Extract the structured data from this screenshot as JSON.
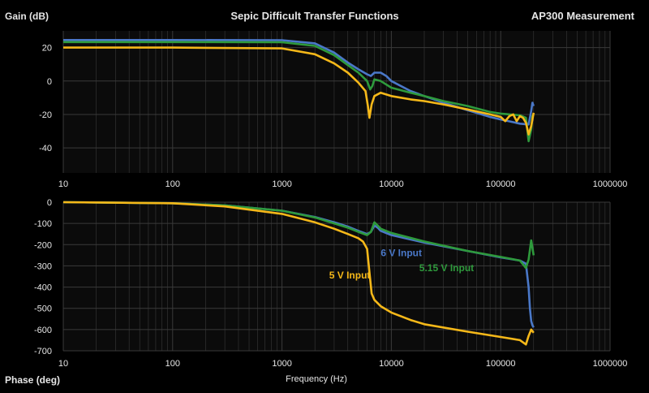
{
  "header": {
    "left_label": "Gain (dB)",
    "title": "Sepic Difficult Transfer Functions",
    "right_label": "AP300 Measurement"
  },
  "footer": {
    "phase_label": "Phase (deg)",
    "x_label": "Frequency (Hz)"
  },
  "colors": {
    "background": "#000000",
    "plot_background": "#0b0b0b",
    "grid": "#3a3a3a",
    "text": "#e6e6e6",
    "series_6v": "#4a78c8",
    "series_5_15v": "#2e9a3c",
    "series_5v": "#f5b819"
  },
  "chart_data": [
    {
      "type": "line",
      "title": "Sepic Difficult Transfer Functions",
      "ylabel": "Gain (dB)",
      "xlabel": "",
      "x_scale": "log",
      "xlim": [
        10,
        1000000
      ],
      "ylim": [
        -55,
        30
      ],
      "x_ticks": [
        "10",
        "100",
        "1000",
        "10000",
        "100000",
        "1000000"
      ],
      "y_ticks": [
        20,
        0,
        -20,
        -40
      ],
      "grid": true,
      "series": [
        {
          "name": "6 V Input",
          "color": "#4a78c8",
          "points": [
            [
              10,
              24.5
            ],
            [
              100,
              24.5
            ],
            [
              1000,
              24.4
            ],
            [
              2000,
              22.5
            ],
            [
              3000,
              17
            ],
            [
              4000,
              11
            ],
            [
              5000,
              7
            ],
            [
              6000,
              4
            ],
            [
              6500,
              3
            ],
            [
              7000,
              5
            ],
            [
              8000,
              5
            ],
            [
              9000,
              3
            ],
            [
              10000,
              0
            ],
            [
              15000,
              -6
            ],
            [
              20000,
              -9
            ],
            [
              30000,
              -13
            ],
            [
              50000,
              -17.5
            ],
            [
              80000,
              -21.5
            ],
            [
              100000,
              -23
            ],
            [
              150000,
              -25.5
            ],
            [
              180000,
              -26
            ],
            [
              190000,
              -18
            ],
            [
              195000,
              -13
            ],
            [
              200000,
              -15
            ]
          ]
        },
        {
          "name": "5.15 V Input",
          "color": "#2e9a3c",
          "points": [
            [
              10,
              23.3
            ],
            [
              100,
              23.3
            ],
            [
              1000,
              23.2
            ],
            [
              2000,
              21
            ],
            [
              3000,
              15.5
            ],
            [
              4000,
              9.5
            ],
            [
              5000,
              5
            ],
            [
              6000,
              0
            ],
            [
              6400,
              -5
            ],
            [
              6700,
              -3
            ],
            [
              7000,
              1
            ],
            [
              8000,
              0
            ],
            [
              10000,
              -4
            ],
            [
              15000,
              -7
            ],
            [
              20000,
              -9
            ],
            [
              30000,
              -12
            ],
            [
              50000,
              -15
            ],
            [
              80000,
              -18.5
            ],
            [
              100000,
              -19.5
            ],
            [
              150000,
              -20.5
            ],
            [
              170000,
              -22
            ],
            [
              180000,
              -36
            ],
            [
              190000,
              -29
            ],
            [
              195000,
              -21
            ],
            [
              200000,
              -20
            ]
          ]
        },
        {
          "name": "5 V Input",
          "color": "#f5b819",
          "points": [
            [
              10,
              20
            ],
            [
              100,
              20
            ],
            [
              1000,
              19.5
            ],
            [
              2000,
              16
            ],
            [
              3000,
              10.5
            ],
            [
              4000,
              5
            ],
            [
              5000,
              -1
            ],
            [
              5800,
              -6
            ],
            [
              6100,
              -15
            ],
            [
              6300,
              -22
            ],
            [
              6600,
              -14
            ],
            [
              7000,
              -9
            ],
            [
              8000,
              -7
            ],
            [
              10000,
              -9
            ],
            [
              15000,
              -11
            ],
            [
              20000,
              -12
            ],
            [
              30000,
              -14
            ],
            [
              50000,
              -17
            ],
            [
              80000,
              -20
            ],
            [
              100000,
              -21.5
            ],
            [
              110000,
              -24
            ],
            [
              120000,
              -21
            ],
            [
              130000,
              -20
            ],
            [
              140000,
              -24
            ],
            [
              150000,
              -21
            ],
            [
              160000,
              -22
            ],
            [
              170000,
              -25
            ],
            [
              180000,
              -32
            ],
            [
              190000,
              -27
            ],
            [
              200000,
              -19
            ]
          ]
        }
      ]
    },
    {
      "type": "line",
      "ylabel": "Phase (deg)",
      "xlabel": "Frequency (Hz)",
      "x_scale": "log",
      "xlim": [
        10,
        1000000
      ],
      "ylim": [
        -700,
        0
      ],
      "x_ticks": [
        "10",
        "100",
        "1000",
        "10000",
        "100000",
        "1000000"
      ],
      "y_ticks": [
        0,
        -100,
        -200,
        -300,
        -400,
        -500,
        -600,
        -700
      ],
      "grid": true,
      "series": [
        {
          "name": "6 V Input",
          "color": "#4a78c8",
          "points": [
            [
              10,
              0
            ],
            [
              100,
              -5
            ],
            [
              300,
              -15
            ],
            [
              1000,
              -40
            ],
            [
              2000,
              -70
            ],
            [
              3000,
              -95
            ],
            [
              4000,
              -115
            ],
            [
              5000,
              -135
            ],
            [
              6000,
              -150
            ],
            [
              6500,
              -140
            ],
            [
              7000,
              -110
            ],
            [
              7500,
              -120
            ],
            [
              8000,
              -135
            ],
            [
              10000,
              -155
            ],
            [
              20000,
              -190
            ],
            [
              50000,
              -230
            ],
            [
              100000,
              -260
            ],
            [
              150000,
              -275
            ],
            [
              170000,
              -290
            ],
            [
              180000,
              -400
            ],
            [
              185000,
              -500
            ],
            [
              190000,
              -560
            ],
            [
              195000,
              -580
            ],
            [
              200000,
              -590
            ]
          ]
        },
        {
          "name": "5.15 V Input",
          "color": "#2e9a3c",
          "points": [
            [
              10,
              0
            ],
            [
              100,
              -5
            ],
            [
              300,
              -15
            ],
            [
              1000,
              -40
            ],
            [
              2000,
              -72
            ],
            [
              3000,
              -100
            ],
            [
              4000,
              -120
            ],
            [
              5000,
              -140
            ],
            [
              6000,
              -155
            ],
            [
              6500,
              -140
            ],
            [
              7000,
              -95
            ],
            [
              7500,
              -110
            ],
            [
              8000,
              -125
            ],
            [
              10000,
              -145
            ],
            [
              20000,
              -185
            ],
            [
              50000,
              -230
            ],
            [
              100000,
              -258
            ],
            [
              150000,
              -275
            ],
            [
              170000,
              -310
            ],
            [
              180000,
              -270
            ],
            [
              190000,
              -180
            ],
            [
              195000,
              -215
            ],
            [
              200000,
              -250
            ]
          ]
        },
        {
          "name": "5 V Input",
          "color": "#f5b819",
          "points": [
            [
              10,
              0
            ],
            [
              100,
              -5
            ],
            [
              300,
              -20
            ],
            [
              1000,
              -55
            ],
            [
              2000,
              -95
            ],
            [
              3000,
              -125
            ],
            [
              4000,
              -150
            ],
            [
              5000,
              -170
            ],
            [
              5500,
              -185
            ],
            [
              6000,
              -220
            ],
            [
              6300,
              -330
            ],
            [
              6600,
              -430
            ],
            [
              7000,
              -460
            ],
            [
              8000,
              -490
            ],
            [
              10000,
              -520
            ],
            [
              15000,
              -555
            ],
            [
              20000,
              -575
            ],
            [
              50000,
              -610
            ],
            [
              100000,
              -635
            ],
            [
              150000,
              -650
            ],
            [
              170000,
              -670
            ],
            [
              180000,
              -630
            ],
            [
              190000,
              -600
            ],
            [
              200000,
              -615
            ]
          ]
        }
      ],
      "annotations": [
        {
          "text": "6 V Input",
          "color": "#4a78c8",
          "x": 8000,
          "y": -255
        },
        {
          "text": "5.15 V Input",
          "color": "#2e9a3c",
          "x": 18000,
          "y": -325
        },
        {
          "text": "5 V Input",
          "color": "#f5b819",
          "x": 2700,
          "y": -360
        }
      ]
    }
  ]
}
